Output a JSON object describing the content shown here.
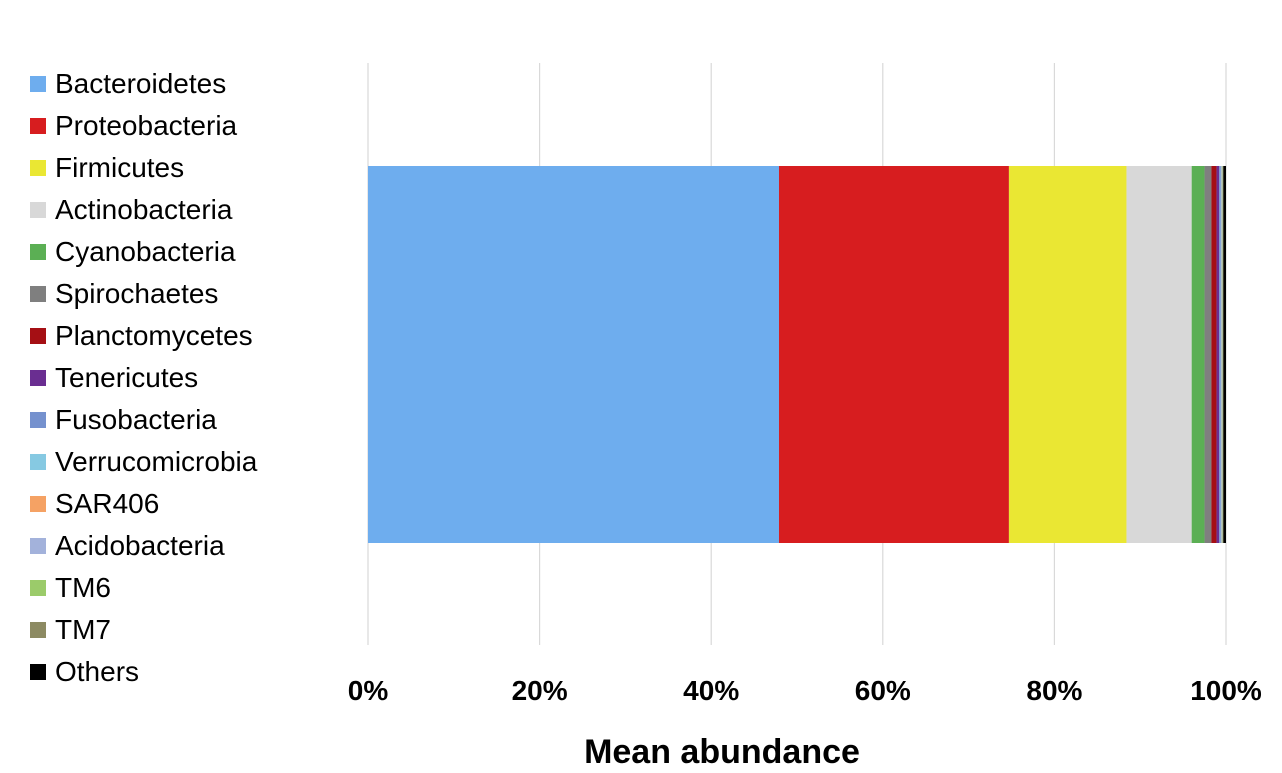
{
  "chart_data": {
    "type": "bar",
    "orientation": "horizontal",
    "stacked": true,
    "percent": true,
    "xlabel": "Mean abundance",
    "xlim": [
      0,
      100
    ],
    "x_ticks": [
      "0%",
      "20%",
      "40%",
      "60%",
      "80%",
      "100%"
    ],
    "grid": true,
    "legend_position": "left",
    "series": [
      {
        "name": "Bacteroidetes",
        "value": 47.9,
        "color": "#6EADEE"
      },
      {
        "name": "Proteobacteria",
        "value": 26.8,
        "color": "#D71D1F"
      },
      {
        "name": "Firmicutes",
        "value": 13.7,
        "color": "#EAE733"
      },
      {
        "name": "Actinobacteria",
        "value": 7.6,
        "color": "#D8D8D8"
      },
      {
        "name": "Cyanobacteria",
        "value": 1.5,
        "color": "#5BAF54"
      },
      {
        "name": "Spirochaetes",
        "value": 0.8,
        "color": "#7F7F7F"
      },
      {
        "name": "Planctomycetes",
        "value": 0.6,
        "color": "#A50F14"
      },
      {
        "name": "Tenericutes",
        "value": 0.3,
        "color": "#6A2E91"
      },
      {
        "name": "Fusobacteria",
        "value": 0.2,
        "color": "#7591CE"
      },
      {
        "name": "Verrucomicrobia",
        "value": 0.1,
        "color": "#86C9E2"
      },
      {
        "name": "SAR406",
        "value": 0.05,
        "color": "#F5A264"
      },
      {
        "name": "Acidobacteria",
        "value": 0.05,
        "color": "#A3B2DB"
      },
      {
        "name": "TM6",
        "value": 0.05,
        "color": "#9BCB6A"
      },
      {
        "name": "TM7",
        "value": 0.05,
        "color": "#8C8A62"
      },
      {
        "name": "Others",
        "value": 0.3,
        "color": "#000000"
      }
    ]
  }
}
